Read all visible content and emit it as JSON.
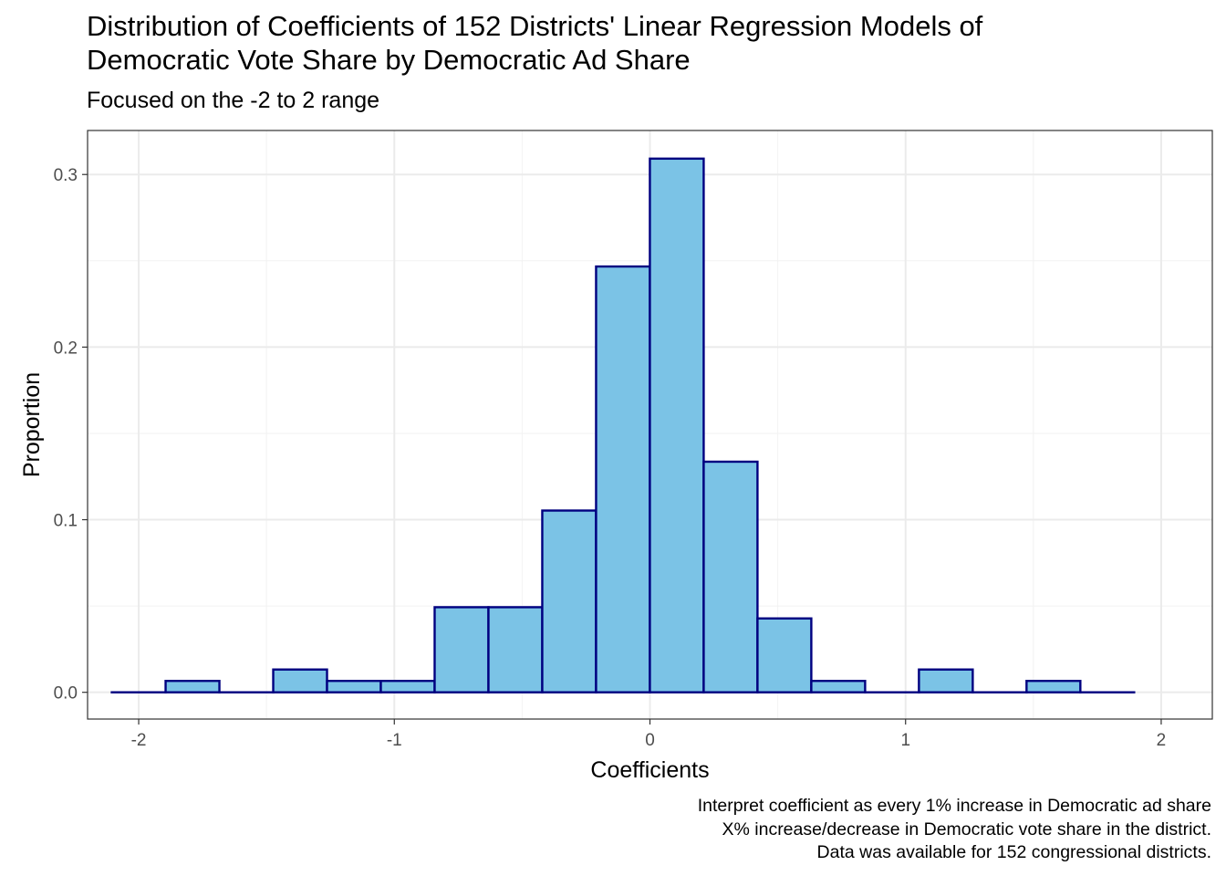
{
  "chart_data": {
    "type": "bar",
    "title_lines": [
      "Distribution of Coefficients of 152 Districts' Linear Regression Models of",
      "Democratic Vote Share by Democratic Ad Share"
    ],
    "subtitle": "Focused on the -2 to 2 range",
    "xlabel": "Coefficients",
    "ylabel": "Proportion",
    "xlim": [
      -2.2,
      2.2
    ],
    "ylim": [
      -0.0155,
      0.3255
    ],
    "x_ticks": [
      -2,
      -1,
      0,
      1,
      2
    ],
    "x_tick_labels": [
      "-2",
      "-1",
      "0",
      "1",
      "2"
    ],
    "y_ticks": [
      0.0,
      0.1,
      0.2,
      0.3
    ],
    "y_tick_labels": [
      "0.0",
      "0.1",
      "0.2",
      "0.3"
    ],
    "y_minor_ticks": [
      0.05,
      0.15,
      0.25
    ],
    "x_minor_ticks": [
      -1.5,
      -0.5,
      0.5,
      1.5
    ],
    "grid": true,
    "bin_width": 0.2105,
    "bins_start": -2.0,
    "values": [
      0.0,
      0.0066,
      0.0,
      0.0132,
      0.0066,
      0.0066,
      0.0493,
      0.0493,
      0.1053,
      0.2467,
      0.3092,
      0.1336,
      0.0428,
      0.0066,
      0.0,
      0.0132,
      0.0,
      0.0066,
      0.0
    ],
    "bar_fill": "#7bc3e6",
    "bar_stroke": "#000080",
    "caption_lines": [
      "Interpret coefficient as every 1% increase in Democratic ad share",
      "X% increase/decrease in Democratic vote share in the district.",
      "Data was available for 152 congressional districts."
    ]
  }
}
